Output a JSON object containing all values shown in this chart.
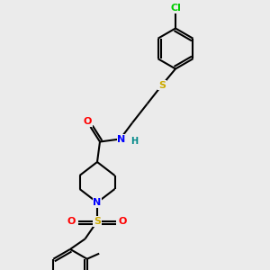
{
  "bg_color": "#ebebeb",
  "bond_color": "#000000",
  "atom_colors": {
    "N": "#0000ff",
    "O": "#ff0000",
    "S_thio": "#ccaa00",
    "S_sulf": "#ccaa00",
    "Cl": "#00cc00",
    "C": "#000000",
    "H": "#008888"
  },
  "figsize": [
    3.0,
    3.0
  ],
  "dpi": 100
}
